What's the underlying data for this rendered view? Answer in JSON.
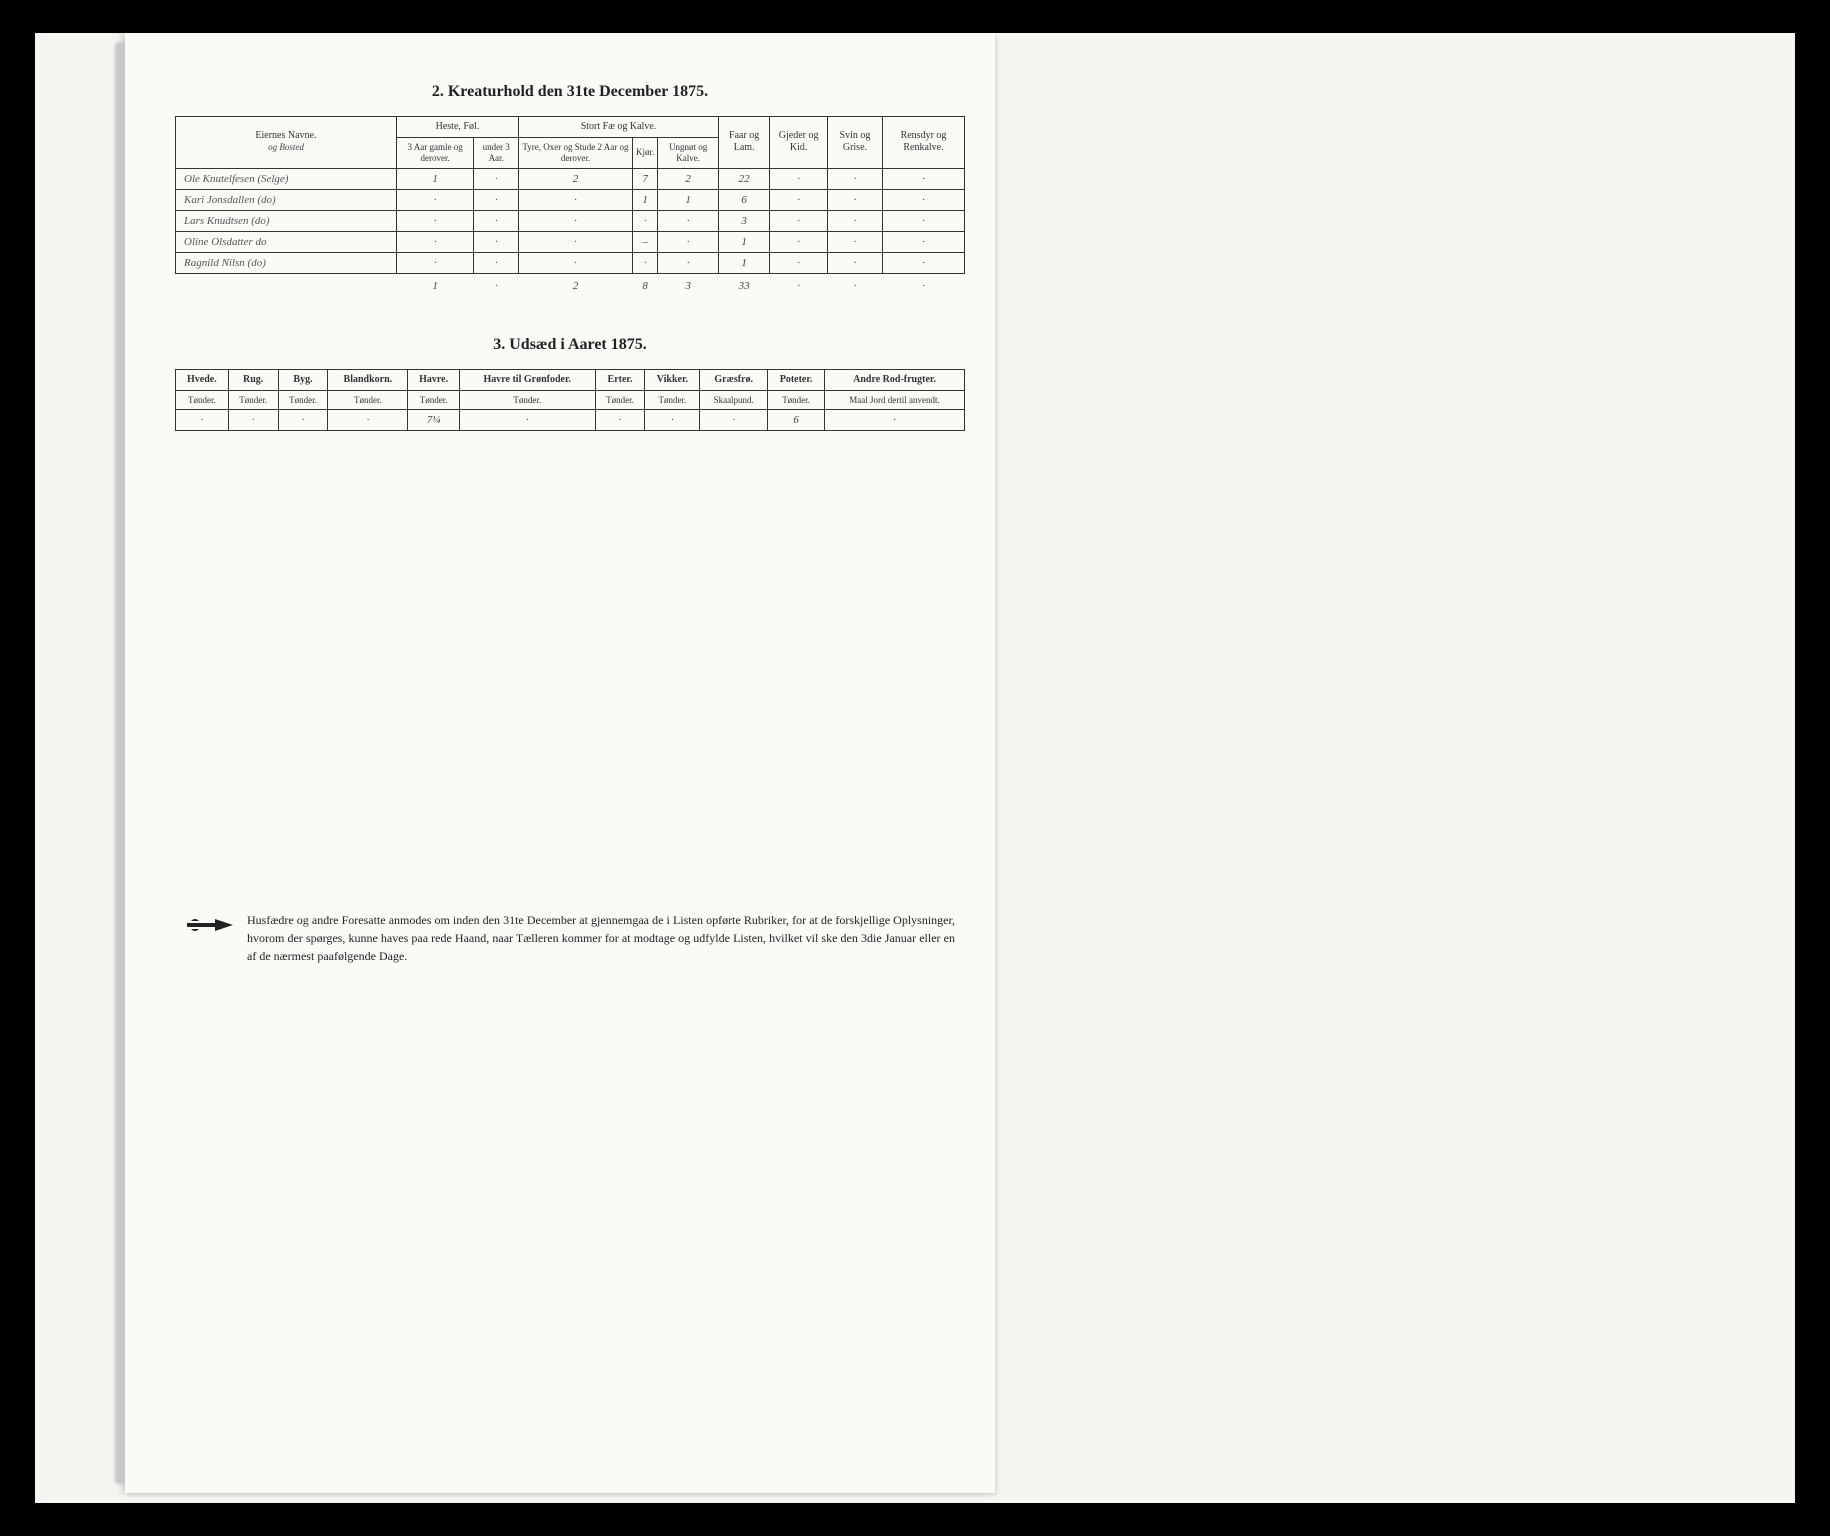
{
  "section2": {
    "title": "2.  Kreaturhold den 31te December 1875.",
    "header": {
      "owners": "Eiernes Navne.",
      "owners_sub": "og Bosted",
      "heste_group": "Heste, Føl.",
      "heste_a": "3 Aar gamle og derover.",
      "heste_b": "under 3 Aar.",
      "stort_group": "Stort Fæ og Kalve.",
      "stort_a": "Tyre, Oxer og Stude 2 Aar og derover.",
      "stort_b": "Kjør.",
      "stort_c": "Ungnøt og Kalve.",
      "faar": "Faar og Lam.",
      "gjeder": "Gjeder og Kid.",
      "svin": "Svin og Grise.",
      "rensdyr": "Rensdyr og Renkalve."
    },
    "rows": [
      {
        "owner": "Ole Knutelfesen  (Selge)",
        "c1": "1",
        "c2": "·",
        "c3": "2",
        "c4": "7",
        "c5": "2",
        "c6": "22",
        "c7": "·",
        "c8": "·",
        "c9": "·"
      },
      {
        "owner": "Kari Jonsdallen     (do)",
        "c1": "·",
        "c2": "·",
        "c3": "·",
        "c4": "1",
        "c5": "1",
        "c6": "6",
        "c7": "·",
        "c8": "·",
        "c9": "·"
      },
      {
        "owner": "Lars Knudtsen       (do)",
        "c1": "·",
        "c2": "·",
        "c3": "·",
        "c4": "·",
        "c5": "·",
        "c6": "3",
        "c7": "·",
        "c8": "·",
        "c9": "·"
      },
      {
        "owner": "Oline Olsdatter      do",
        "c1": "·",
        "c2": "·",
        "c3": "·",
        "c4": "–",
        "c5": "·",
        "c6": "1",
        "c7": "·",
        "c8": "·",
        "c9": "·"
      },
      {
        "owner": "Ragnild Nilsn       (do)",
        "c1": "·",
        "c2": "·",
        "c3": "·",
        "c4": "·",
        "c5": "·",
        "c6": "1",
        "c7": "·",
        "c8": "·",
        "c9": "·"
      }
    ],
    "totals": {
      "c1": "1",
      "c2": "·",
      "c3": "2",
      "c4": "8",
      "c5": "3",
      "c6": "33",
      "c7": "·",
      "c8": "·",
      "c9": "·"
    }
  },
  "section3": {
    "title": "3.  Udsæd i Aaret 1875.",
    "columns": [
      {
        "label": "Hvede.",
        "unit": "Tønder."
      },
      {
        "label": "Rug.",
        "unit": "Tønder."
      },
      {
        "label": "Byg.",
        "unit": "Tønder."
      },
      {
        "label": "Blandkorn.",
        "unit": "Tønder."
      },
      {
        "label": "Havre.",
        "unit": "Tønder."
      },
      {
        "label": "Havre til Grønfoder.",
        "unit": "Tønder."
      },
      {
        "label": "Erter.",
        "unit": "Tønder."
      },
      {
        "label": "Vikker.",
        "unit": "Tønder."
      },
      {
        "label": "Græsfrø.",
        "unit": "Skaalpund."
      },
      {
        "label": "Poteter.",
        "unit": "Tønder."
      },
      {
        "label": "Andre Rod-frugter.",
        "unit": "Maal Jord dertil anvendt."
      }
    ],
    "values": [
      "·",
      "·",
      "·",
      "·",
      "7¼",
      "·",
      "·",
      "·",
      "·",
      "6",
      "·"
    ]
  },
  "footer": "Husfædre og andre Foresatte anmodes om inden den 31te December at gjennemgaa de i Listen opførte Rubriker, for at de forskjellige Oplysninger, hvorom der spørges, kunne haves paa rede Haand, naar Tælleren kommer for at modtage og udfylde Listen, hvilket vil ske den 3die Januar eller en af de nærmest paafølgende Dage."
}
